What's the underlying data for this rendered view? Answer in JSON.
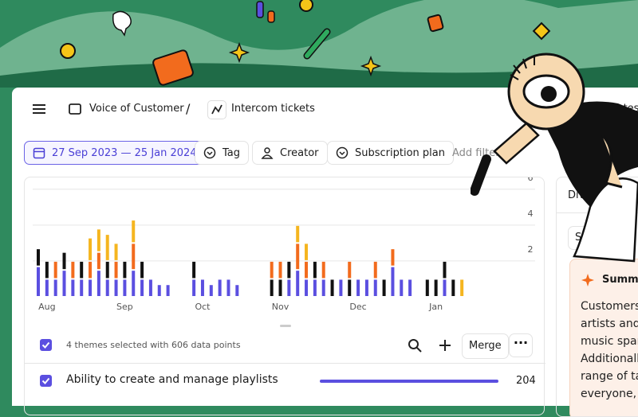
{
  "header": {
    "breadcrumb": [
      "Voice of Customer",
      "/",
      "Intercom tickets"
    ],
    "right_text": "lates"
  },
  "filters": {
    "date_range": "27 Sep 2023 — 25 Jan 2024",
    "items": [
      "Tag",
      "Creator",
      "Subscription plan"
    ],
    "add": "Add filter"
  },
  "chart": {
    "type": "bar",
    "stacked": true,
    "categories": [
      null,
      "Aug",
      null,
      null,
      null,
      null,
      null,
      null,
      null,
      null,
      "Sep",
      null,
      null,
      null,
      null,
      null,
      null,
      null,
      null,
      "Oct",
      null,
      null,
      null,
      null,
      null,
      null,
      null,
      null,
      "Nov",
      null,
      null,
      null,
      null,
      null,
      null,
      null,
      null,
      "Dec",
      null,
      null,
      null,
      null,
      null,
      null,
      null,
      null,
      "Jan",
      null,
      null,
      null
    ],
    "series": [
      {
        "color": "#5b4fe0",
        "values": [
          1.7,
          1,
          1,
          1.5,
          1,
          1,
          1,
          1.5,
          1,
          1,
          1,
          1.5,
          1,
          1,
          0.7,
          0.7,
          0,
          0,
          1,
          1,
          0.7,
          1,
          1,
          0.7,
          0,
          0,
          0,
          0,
          0,
          1,
          1.5,
          1,
          1,
          1,
          0,
          1,
          0,
          1,
          1,
          1,
          0,
          1.7,
          1,
          1,
          0,
          0,
          0,
          1,
          0,
          0
        ]
      },
      {
        "color": "#111111",
        "values": [
          1,
          1,
          0,
          1,
          0,
          1,
          0,
          0,
          1,
          0,
          1,
          0,
          1,
          0,
          0,
          0,
          0,
          0,
          1,
          0,
          0,
          0,
          0,
          0,
          0,
          0,
          0,
          1,
          1,
          1,
          0,
          0,
          1,
          0,
          1,
          0,
          1,
          0,
          0,
          0,
          1,
          0,
          0,
          0,
          0,
          1,
          1,
          1,
          1,
          0
        ]
      },
      {
        "color": "#f26b1d",
        "values": [
          0,
          0,
          1,
          0,
          1,
          0,
          1,
          1,
          0,
          1,
          0,
          1.5,
          0,
          0,
          0,
          0,
          0,
          0,
          0,
          0,
          0,
          0,
          0,
          0,
          0,
          0,
          0,
          1,
          1,
          0,
          1.5,
          1,
          0,
          1,
          0,
          0,
          1,
          0,
          0,
          1,
          0,
          1,
          0,
          0,
          0,
          0,
          0,
          0,
          0,
          0
        ]
      },
      {
        "color": "#f5b51f",
        "values": [
          0,
          0,
          0,
          0,
          0,
          0,
          1.3,
          1.3,
          1.5,
          1,
          0,
          1.3,
          0,
          0,
          0,
          0,
          0,
          0,
          0,
          0,
          0,
          0,
          0,
          0,
          0,
          0,
          0,
          0,
          0,
          0,
          1,
          1,
          0,
          0,
          0,
          0,
          0,
          0,
          0,
          0,
          0,
          0,
          0,
          0,
          0,
          0,
          0,
          0,
          0,
          1
        ]
      }
    ],
    "ylim": [
      0,
      6.3
    ],
    "yticks": [
      2,
      4,
      6
    ],
    "grid": true
  },
  "selection": {
    "summary": "4 themes selected with 606 data points",
    "merge": "Merge"
  },
  "themes": [
    {
      "label": "Ability to create and manage playlists",
      "count": 204
    }
  ],
  "side_panel": {
    "tab": "Diversit",
    "button": "Sh",
    "summary_title": "Summa",
    "summary_lines": [
      "Customers g",
      "artists and p",
      "music spann",
      "Additionally,",
      "range of tas",
      "everyone, w"
    ]
  }
}
